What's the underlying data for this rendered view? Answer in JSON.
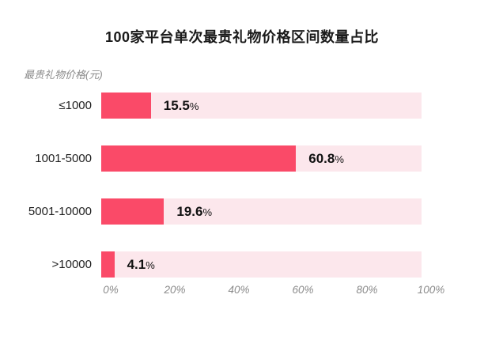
{
  "title": "100家平台单次最贵礼物价格区间数量占比",
  "unit_label": "最贵礼物价格(元)",
  "colors": {
    "bar_fill": "#FA4A68",
    "bar_track": "#FCE7EC",
    "title_text": "#1A1A1A",
    "category_text": "#1F1F1F",
    "value_text": "#111111",
    "axis_text": "#8B8B8B"
  },
  "chart_data": {
    "type": "bar",
    "orientation": "horizontal",
    "title": "100家平台单次最贵礼物价格区间数量占比",
    "ylabel": "最贵礼物价格(元)",
    "xlabel": "",
    "categories": [
      "≤1000",
      "1001-5000",
      "5001-10000",
      ">10000"
    ],
    "values": [
      15.5,
      60.8,
      19.6,
      4.1
    ],
    "value_suffix": "%",
    "x_ticks": [
      "0%",
      "20%",
      "40%",
      "60%",
      "80%",
      "100%"
    ],
    "xlim": [
      0,
      100
    ],
    "grid": false,
    "legend": false
  }
}
